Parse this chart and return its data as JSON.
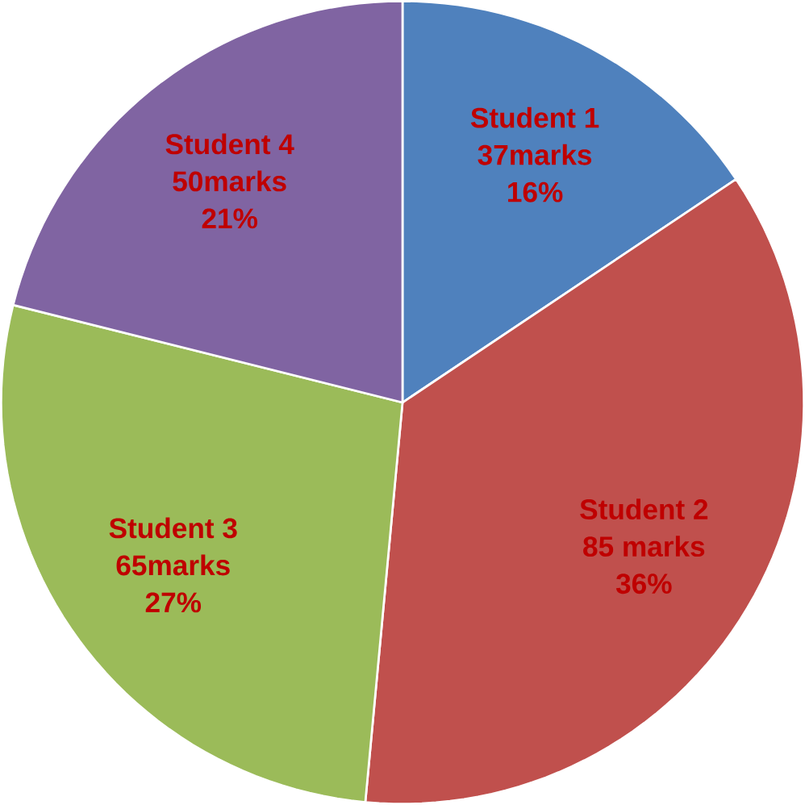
{
  "chart_data": {
    "type": "pie",
    "categories": [
      "Student 1",
      "Student 2",
      "Student 3",
      "Student 4"
    ],
    "values": [
      37,
      85,
      65,
      50
    ],
    "value_labels": [
      "37marks",
      "85 marks",
      "65marks",
      "50marks"
    ],
    "colors": [
      "#4f81bd",
      "#c0504d",
      "#9bbb59",
      "#8064a2"
    ],
    "annotations": [
      "16%",
      "36%",
      "27%",
      "21%"
    ]
  }
}
